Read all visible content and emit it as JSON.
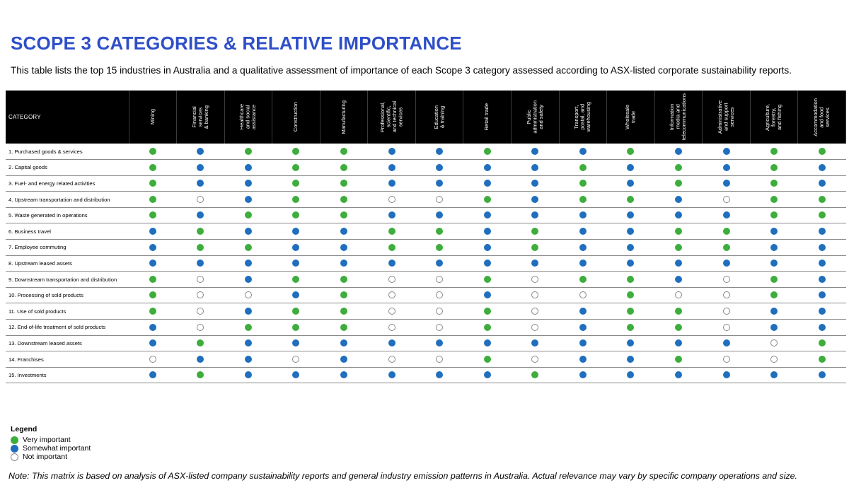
{
  "title": "SCOPE 3 CATEGORIES & RELATIVE IMPORTANCE",
  "subtitle": "This table lists the top 15 industries in Australia and a qualitative assessment of importance of each Scope 3 category assessed according to ASX-listed corporate sustainability reports.",
  "colors": {
    "very": "#3dae3b",
    "somewhat": "#1f6fbe",
    "not_fill": "#ffffff",
    "not_border": "#888888",
    "title": "#2f4fc8"
  },
  "table": {
    "category_header": "CATEGORY",
    "industries": [
      "Mining",
      "Financial\nservices\n& banking",
      "Healthcare\nand social\nassistance",
      "Construction",
      "Manufacturing",
      "Professional,\nscientific,\nand technical\nservices",
      "Education\n& training",
      "Retail trade",
      "Public\nadministration\nand safety",
      "Transport,\npostal, and\nwarehousing",
      "Wholesale\ntrade",
      "Information\nmedia and\ntelecommunications",
      "Administrative\nand support\nservices",
      "Agriculture,\nforestry,\nand fishing",
      "Accommodation\nand food\nservices"
    ],
    "rows": [
      {
        "category": "1. Purchased goods & services",
        "values": [
          "V",
          "S",
          "V",
          "V",
          "V",
          "S",
          "S",
          "V",
          "S",
          "S",
          "V",
          "S",
          "S",
          "V",
          "V"
        ]
      },
      {
        "category": "2. Capital goods",
        "values": [
          "V",
          "S",
          "S",
          "V",
          "V",
          "S",
          "S",
          "S",
          "S",
          "V",
          "S",
          "V",
          "S",
          "V",
          "S"
        ]
      },
      {
        "category": "3. Fuel- and energy related activities",
        "values": [
          "V",
          "S",
          "S",
          "V",
          "V",
          "S",
          "S",
          "S",
          "S",
          "V",
          "S",
          "V",
          "S",
          "V",
          "S"
        ]
      },
      {
        "category": "4. Upstream transportation and distribution",
        "values": [
          "V",
          "N",
          "S",
          "V",
          "V",
          "N",
          "N",
          "V",
          "S",
          "V",
          "V",
          "S",
          "N",
          "V",
          "V"
        ]
      },
      {
        "category": "5. Waste generated in operations",
        "values": [
          "V",
          "S",
          "V",
          "V",
          "V",
          "S",
          "S",
          "S",
          "S",
          "S",
          "S",
          "S",
          "S",
          "V",
          "V"
        ]
      },
      {
        "category": "6. Business travel",
        "values": [
          "S",
          "V",
          "S",
          "S",
          "S",
          "V",
          "V",
          "S",
          "V",
          "S",
          "S",
          "V",
          "V",
          "S",
          "S"
        ]
      },
      {
        "category": "7. Employee commuting",
        "values": [
          "S",
          "V",
          "V",
          "S",
          "S",
          "V",
          "V",
          "S",
          "V",
          "S",
          "S",
          "V",
          "V",
          "S",
          "S"
        ]
      },
      {
        "category": "8. Upstream leased assets",
        "values": [
          "S",
          "S",
          "S",
          "S",
          "S",
          "S",
          "S",
          "S",
          "S",
          "S",
          "S",
          "S",
          "S",
          "S",
          "S"
        ]
      },
      {
        "category": "9. Downstream transportation and distribution",
        "values": [
          "V",
          "N",
          "S",
          "V",
          "V",
          "N",
          "N",
          "V",
          "N",
          "V",
          "V",
          "S",
          "N",
          "V",
          "S"
        ]
      },
      {
        "category": "10. Processing of sold products",
        "values": [
          "V",
          "N",
          "N",
          "S",
          "V",
          "N",
          "N",
          "S",
          "N",
          "N",
          "V",
          "N",
          "N",
          "V",
          "S"
        ]
      },
      {
        "category": "11. Use of sold products",
        "values": [
          "V",
          "N",
          "S",
          "V",
          "V",
          "N",
          "N",
          "V",
          "N",
          "S",
          "V",
          "V",
          "N",
          "S",
          "S"
        ]
      },
      {
        "category": "12. End-of-life treatment of sold products",
        "values": [
          "S",
          "N",
          "V",
          "V",
          "V",
          "N",
          "N",
          "V",
          "N",
          "S",
          "V",
          "V",
          "N",
          "S",
          "S"
        ]
      },
      {
        "category": "13. Downstream leased assets",
        "values": [
          "S",
          "V",
          "S",
          "S",
          "S",
          "S",
          "S",
          "S",
          "S",
          "S",
          "S",
          "S",
          "S",
          "N",
          "V"
        ]
      },
      {
        "category": "14. Franchises",
        "values": [
          "N",
          "S",
          "S",
          "N",
          "S",
          "N",
          "N",
          "V",
          "N",
          "S",
          "S",
          "V",
          "N",
          "N",
          "V"
        ]
      },
      {
        "category": "15. Investments",
        "values": [
          "S",
          "V",
          "S",
          "S",
          "S",
          "S",
          "S",
          "S",
          "V",
          "S",
          "S",
          "S",
          "S",
          "S",
          "S"
        ]
      }
    ]
  },
  "legend": {
    "title": "Legend",
    "items": [
      {
        "key": "V",
        "label": "Very important"
      },
      {
        "key": "S",
        "label": "Somewhat important"
      },
      {
        "key": "N",
        "label": "Not important"
      }
    ]
  },
  "note": "Note: This matrix is based on analysis of ASX-listed company sustainability reports and general industry emission patterns in Australia. Actual relevance may vary by specific company operations and size."
}
